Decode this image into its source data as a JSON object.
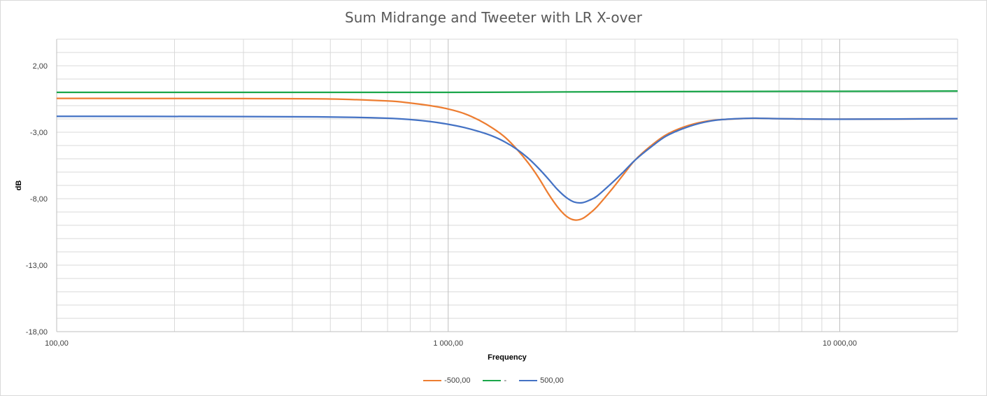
{
  "chart_data": {
    "type": "line",
    "title": "Sum Midrange and Tweeter with LR X-over",
    "xlabel": "Frequency",
    "ylabel": "dB",
    "x_scale": "log",
    "xlim": [
      100,
      20000
    ],
    "ylim": [
      -18,
      4
    ],
    "y_ticks": [
      {
        "value": 2,
        "label": "2,00"
      },
      {
        "value": -3,
        "label": "-3,00"
      },
      {
        "value": -8,
        "label": "-8,00"
      },
      {
        "value": -13,
        "label": "-13,00"
      },
      {
        "value": -18,
        "label": "-18,00"
      }
    ],
    "x_ticks": [
      {
        "value": 100,
        "label": "100,00"
      },
      {
        "value": 1000,
        "label": "1 000,00"
      },
      {
        "value": 10000,
        "label": "10 000,00"
      }
    ],
    "grid": true,
    "minor_grid": true,
    "legend_position": "bottom",
    "series": [
      {
        "name": "-500,00",
        "color": "#ed7d31",
        "points": [
          [
            100,
            -0.45
          ],
          [
            300,
            -0.47
          ],
          [
            500,
            -0.5
          ],
          [
            700,
            -0.65
          ],
          [
            800,
            -0.8
          ],
          [
            900,
            -1.0
          ],
          [
            1000,
            -1.25
          ],
          [
            1100,
            -1.6
          ],
          [
            1200,
            -2.1
          ],
          [
            1300,
            -2.7
          ],
          [
            1400,
            -3.4
          ],
          [
            1500,
            -4.3
          ],
          [
            1600,
            -5.3
          ],
          [
            1700,
            -6.4
          ],
          [
            1800,
            -7.6
          ],
          [
            1900,
            -8.6
          ],
          [
            2000,
            -9.3
          ],
          [
            2100,
            -9.6
          ],
          [
            2200,
            -9.5
          ],
          [
            2300,
            -9.1
          ],
          [
            2400,
            -8.6
          ],
          [
            2600,
            -7.4
          ],
          [
            2800,
            -6.2
          ],
          [
            3000,
            -5.1
          ],
          [
            3300,
            -4.0
          ],
          [
            3600,
            -3.2
          ],
          [
            4000,
            -2.6
          ],
          [
            4500,
            -2.2
          ],
          [
            5000,
            -2.05
          ],
          [
            6000,
            -1.95
          ],
          [
            7000,
            -1.98
          ],
          [
            10000,
            -2.02
          ],
          [
            20000,
            -1.98
          ]
        ]
      },
      {
        "name": "-",
        "color": "#1aa64a",
        "points": [
          [
            100,
            0.0
          ],
          [
            500,
            0.0
          ],
          [
            1000,
            0.0
          ],
          [
            2000,
            0.03
          ],
          [
            5000,
            0.07
          ],
          [
            10000,
            0.08
          ],
          [
            20000,
            0.1
          ]
        ]
      },
      {
        "name": "500,00",
        "color": "#4472c4",
        "points": [
          [
            100,
            -1.8
          ],
          [
            300,
            -1.82
          ],
          [
            500,
            -1.85
          ],
          [
            700,
            -1.95
          ],
          [
            800,
            -2.05
          ],
          [
            900,
            -2.2
          ],
          [
            1000,
            -2.4
          ],
          [
            1100,
            -2.65
          ],
          [
            1200,
            -2.95
          ],
          [
            1300,
            -3.3
          ],
          [
            1400,
            -3.75
          ],
          [
            1500,
            -4.3
          ],
          [
            1600,
            -4.95
          ],
          [
            1700,
            -5.7
          ],
          [
            1800,
            -6.5
          ],
          [
            1900,
            -7.3
          ],
          [
            2000,
            -7.9
          ],
          [
            2100,
            -8.25
          ],
          [
            2200,
            -8.3
          ],
          [
            2300,
            -8.1
          ],
          [
            2400,
            -7.8
          ],
          [
            2600,
            -6.9
          ],
          [
            2800,
            -6.0
          ],
          [
            3000,
            -5.1
          ],
          [
            3300,
            -4.1
          ],
          [
            3600,
            -3.3
          ],
          [
            4000,
            -2.7
          ],
          [
            4500,
            -2.25
          ],
          [
            5000,
            -2.05
          ],
          [
            6000,
            -1.95
          ],
          [
            7000,
            -1.98
          ],
          [
            10000,
            -2.02
          ],
          [
            20000,
            -1.98
          ]
        ]
      }
    ]
  }
}
